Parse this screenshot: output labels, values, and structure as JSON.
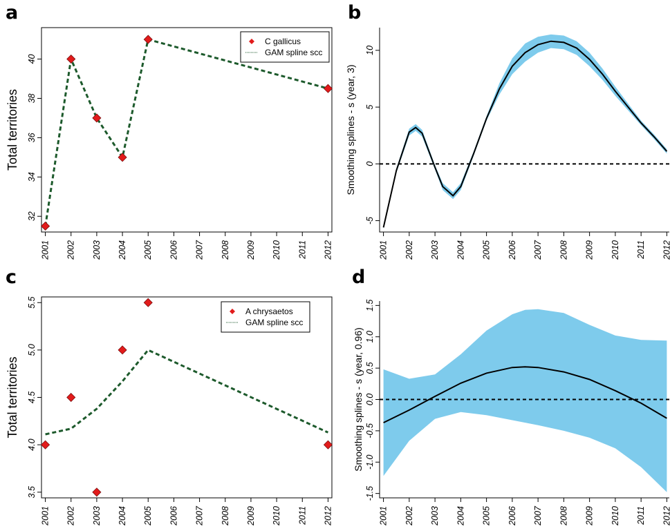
{
  "colors": {
    "marker_fill": "#e21b1b",
    "marker_stroke": "#7a1010",
    "fit_line": "#1d5a2c",
    "band": "#7ecbec",
    "curve": "#000000"
  },
  "chart_data": [
    {
      "panel": "a",
      "type": "scatter",
      "ylabel": "Total territories",
      "xlabel": "",
      "x_ticks": [
        "2001",
        "2002",
        "2003",
        "2004",
        "2005",
        "2006",
        "2007",
        "2008",
        "2009",
        "2010",
        "2011",
        "2012"
      ],
      "y_ticks": [
        "32",
        "34",
        "36",
        "38",
        "40"
      ],
      "ylim": [
        31.2,
        41.6
      ],
      "xlim": [
        2000.85,
        2012.15
      ],
      "points": {
        "x": [
          2001,
          2002,
          2003,
          2004,
          2005,
          2012
        ],
        "y": [
          31.5,
          40,
          37,
          35,
          41,
          38.5
        ]
      },
      "fit": {
        "x": [
          2001,
          2002,
          2003,
          2004,
          2005,
          2012
        ],
        "y": [
          31.5,
          40,
          37,
          35,
          41,
          38.5
        ]
      },
      "legend": {
        "position": "top-right",
        "entries": [
          "C gallicus",
          "GAM spline scc"
        ]
      }
    },
    {
      "panel": "b",
      "type": "line",
      "ylabel": "Smoothing splines - s (year, 3)",
      "xlabel": "",
      "x_ticks": [
        "2001",
        "2002",
        "2003",
        "2004",
        "2005",
        "2006",
        "2007",
        "2008",
        "2009",
        "2010",
        "2011",
        "2012"
      ],
      "y_ticks": [
        "-5",
        "0",
        "5",
        "10"
      ],
      "ylim": [
        -6.0,
        12.0
      ],
      "xlim": [
        2000.85,
        2012.15
      ],
      "reference_line": 0,
      "curve": {
        "x": [
          2001,
          2001.5,
          2002,
          2002.25,
          2002.5,
          2003,
          2003.3,
          2003.7,
          2004,
          2004.5,
          2005,
          2005.5,
          2006,
          2006.5,
          2007,
          2007.5,
          2008,
          2008.5,
          2009,
          2009.5,
          2010,
          2010.5,
          2011,
          2011.5,
          2012
        ],
        "y": [
          -5.6,
          -0.6,
          2.8,
          3.2,
          2.7,
          -0.3,
          -2.0,
          -2.8,
          -2.0,
          0.9,
          4.0,
          6.6,
          8.6,
          9.8,
          10.5,
          10.8,
          10.7,
          10.2,
          9.2,
          7.9,
          6.4,
          5.0,
          3.6,
          2.4,
          1.1
        ]
      },
      "band": {
        "upper": [
          -5.5,
          -0.4,
          3.1,
          3.5,
          3.0,
          -0.1,
          -1.7,
          -2.5,
          -1.7,
          1.1,
          4.2,
          7.1,
          9.3,
          10.6,
          11.2,
          11.4,
          11.3,
          10.8,
          9.8,
          8.4,
          6.8,
          5.3,
          3.8,
          2.6,
          1.3
        ],
        "lower": [
          -5.7,
          -0.8,
          2.5,
          2.9,
          2.4,
          -0.5,
          -2.3,
          -3.1,
          -2.3,
          0.7,
          3.8,
          6.1,
          7.9,
          9.0,
          9.8,
          10.2,
          10.1,
          9.6,
          8.6,
          7.4,
          6.0,
          4.7,
          3.4,
          2.2,
          0.9
        ]
      }
    },
    {
      "panel": "c",
      "type": "scatter",
      "ylabel": "Total territories",
      "xlabel": "",
      "x_ticks": [
        "2001",
        "2002",
        "2003",
        "2004",
        "2005",
        "2006",
        "2007",
        "2008",
        "2009",
        "2010",
        "2011",
        "2012"
      ],
      "y_ticks": [
        "3.5",
        "4.0",
        "4.5",
        "5.0",
        "5.5"
      ],
      "ylim": [
        3.44,
        5.56
      ],
      "xlim": [
        2000.85,
        2012.15
      ],
      "points": {
        "x": [
          2001,
          2002,
          2003,
          2004,
          2005,
          2012
        ],
        "y": [
          4.0,
          4.5,
          3.5,
          5.0,
          5.5,
          4.0
        ]
      },
      "fit": {
        "x": [
          2001,
          2002,
          2003,
          2004,
          2005,
          2012
        ],
        "y": [
          4.11,
          4.17,
          4.38,
          4.67,
          5.0,
          4.13
        ]
      },
      "legend": {
        "position": "top-right",
        "entries": [
          "A chrysaetos",
          "GAM spline scc"
        ]
      }
    },
    {
      "panel": "d",
      "type": "line",
      "ylabel": "Smoothing splines - s (year, 0.96)",
      "xlabel": "",
      "x_ticks": [
        "2001",
        "2002",
        "2003",
        "2004",
        "2005",
        "2006",
        "2007",
        "2008",
        "2009",
        "2010",
        "2011",
        "2012"
      ],
      "y_ticks": [
        "-1.5",
        "-1.0",
        "-0.5",
        "0.0",
        "0.5",
        "1.0",
        "1.5"
      ],
      "ylim": [
        -1.57,
        1.57
      ],
      "xlim": [
        2000.85,
        2012.15
      ],
      "reference_line": 0,
      "curve": {
        "x": [
          2001,
          2002,
          2003,
          2004,
          2005,
          2006,
          2006.5,
          2007,
          2008,
          2009,
          2010,
          2011,
          2012
        ],
        "y": [
          -0.37,
          -0.17,
          0.05,
          0.26,
          0.42,
          0.51,
          0.52,
          0.51,
          0.44,
          0.32,
          0.14,
          -0.06,
          -0.3
        ]
      },
      "band": {
        "upper": [
          0.48,
          0.33,
          0.4,
          0.72,
          1.1,
          1.36,
          1.43,
          1.44,
          1.38,
          1.19,
          1.02,
          0.95,
          0.94
        ],
        "lower": [
          -1.22,
          -0.66,
          -0.31,
          -0.2,
          -0.25,
          -0.33,
          -0.37,
          -0.41,
          -0.5,
          -0.61,
          -0.78,
          -1.08,
          -1.48
        ]
      }
    }
  ]
}
